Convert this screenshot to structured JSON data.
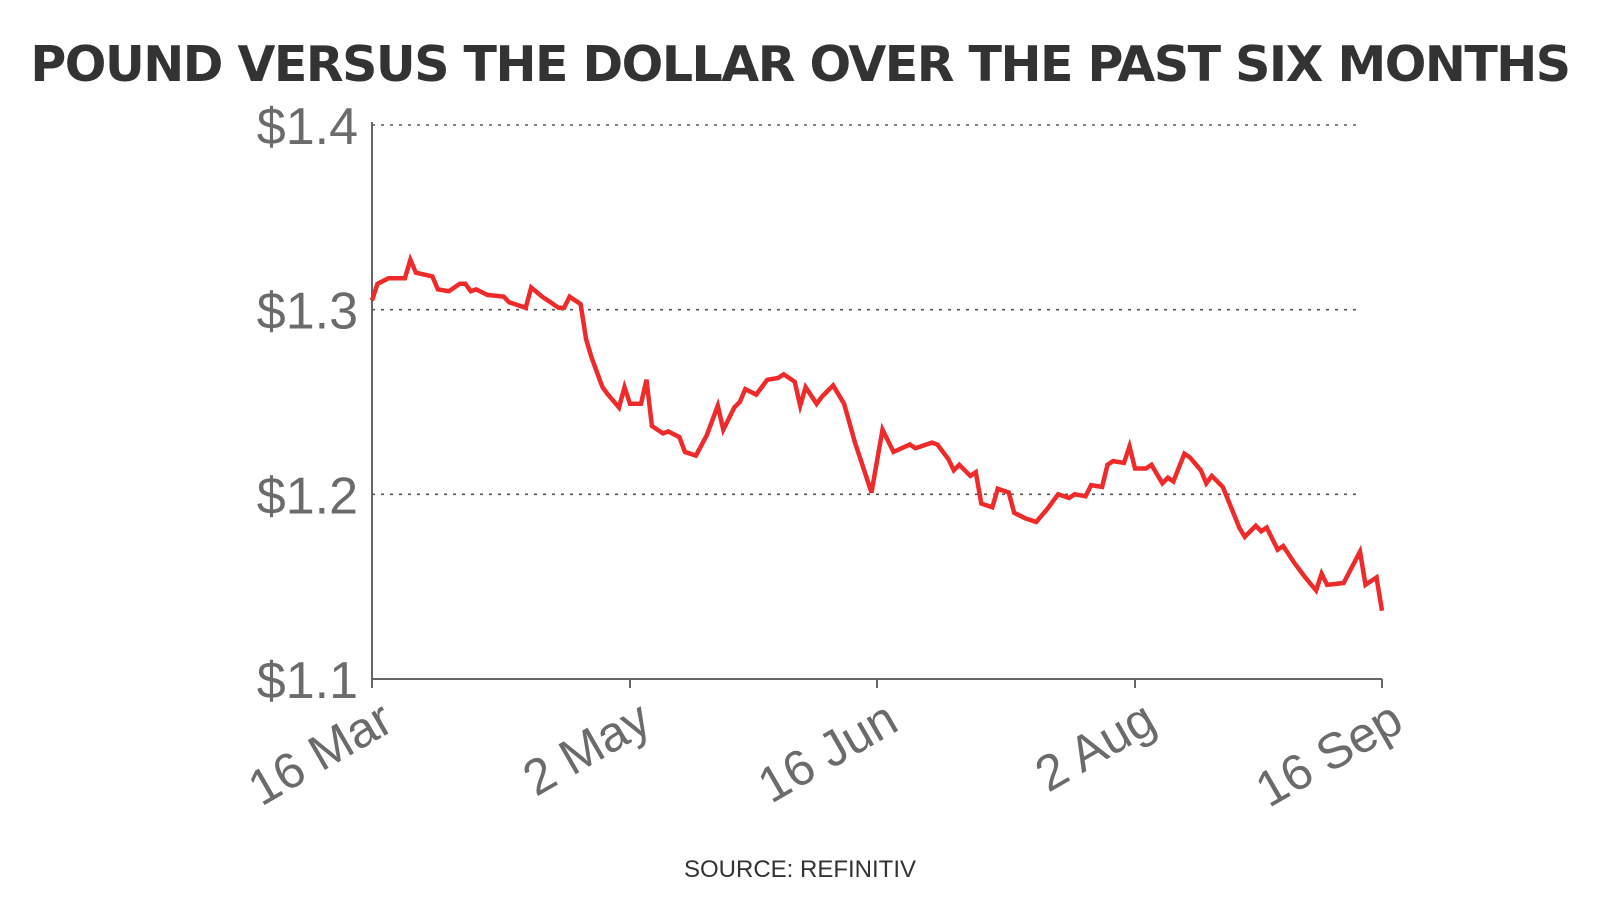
{
  "chart_data": {
    "type": "line",
    "title": "POUND VERSUS THE DOLLAR OVER THE PAST SIX MONTHS",
    "source": "SOURCE: REFINITIV",
    "xlabel": "",
    "ylabel": "",
    "ylim": [
      1.1,
      1.4
    ],
    "xlim": [
      "2022-03-16",
      "2022-09-16"
    ],
    "grid": "horizontal dotted",
    "line_color": "#ee2a2a",
    "y_ticks": [
      {
        "value": 1.1,
        "label": "$1.1"
      },
      {
        "value": 1.2,
        "label": "$1.2"
      },
      {
        "value": 1.3,
        "label": "$1.3"
      },
      {
        "value": 1.4,
        "label": "$1.4"
      }
    ],
    "x_ticks": [
      {
        "date": "2022-03-16",
        "label": "16 Mar"
      },
      {
        "date": "2022-05-02",
        "label": "2 May"
      },
      {
        "date": "2022-06-16",
        "label": "16 Jun"
      },
      {
        "date": "2022-08-02",
        "label": "2 Aug"
      },
      {
        "date": "2022-09-16",
        "label": "16 Sep"
      }
    ],
    "series": [
      {
        "points": [
          [
            "2022-03-16",
            1.305
          ],
          [
            "2022-03-17",
            1.314
          ],
          [
            "2022-03-19",
            1.317
          ],
          [
            "2022-03-22",
            1.317
          ],
          [
            "2022-03-23",
            1.327
          ],
          [
            "2022-03-24",
            1.32
          ],
          [
            "2022-03-27",
            1.318
          ],
          [
            "2022-03-28",
            1.311
          ],
          [
            "2022-03-30",
            1.31
          ],
          [
            "2022-04-01",
            1.314
          ],
          [
            "2022-04-02",
            1.314
          ],
          [
            "2022-04-03",
            1.31
          ],
          [
            "2022-04-04",
            1.311
          ],
          [
            "2022-04-06",
            1.308
          ],
          [
            "2022-04-09",
            1.307
          ],
          [
            "2022-04-10",
            1.304
          ],
          [
            "2022-04-13",
            1.301
          ],
          [
            "2022-04-14",
            1.312
          ],
          [
            "2022-04-16",
            1.307
          ],
          [
            "2022-04-17",
            1.305
          ],
          [
            "2022-04-19",
            1.301
          ],
          [
            "2022-04-20",
            1.301
          ],
          [
            "2022-04-21",
            1.307
          ],
          [
            "2022-04-23",
            1.303
          ],
          [
            "2022-04-24",
            1.284
          ],
          [
            "2022-04-25",
            1.274
          ],
          [
            "2022-04-27",
            1.258
          ],
          [
            "2022-04-28",
            1.254
          ],
          [
            "2022-04-30",
            1.247
          ],
          [
            "2022-05-01",
            1.258
          ],
          [
            "2022-05-02",
            1.249
          ],
          [
            "2022-05-04",
            1.249
          ],
          [
            "2022-05-05",
            1.262
          ],
          [
            "2022-05-06",
            1.237
          ],
          [
            "2022-05-08",
            1.233
          ],
          [
            "2022-05-09",
            1.234
          ],
          [
            "2022-05-11",
            1.231
          ],
          [
            "2022-05-12",
            1.223
          ],
          [
            "2022-05-14",
            1.221
          ],
          [
            "2022-05-16",
            1.232
          ],
          [
            "2022-05-18",
            1.248
          ],
          [
            "2022-05-19",
            1.235
          ],
          [
            "2022-05-21",
            1.247
          ],
          [
            "2022-05-22",
            1.25
          ],
          [
            "2022-05-23",
            1.257
          ],
          [
            "2022-05-25",
            1.254
          ],
          [
            "2022-05-27",
            1.262
          ],
          [
            "2022-05-29",
            1.263
          ],
          [
            "2022-05-30",
            1.265
          ],
          [
            "2022-06-01",
            1.261
          ],
          [
            "2022-06-02",
            1.248
          ],
          [
            "2022-06-03",
            1.258
          ],
          [
            "2022-06-05",
            1.249
          ],
          [
            "2022-06-06",
            1.253
          ],
          [
            "2022-06-08",
            1.259
          ],
          [
            "2022-06-10",
            1.249
          ],
          [
            "2022-06-12",
            1.228
          ],
          [
            "2022-06-15",
            1.201
          ],
          [
            "2022-06-17",
            1.235
          ],
          [
            "2022-06-19",
            1.223
          ],
          [
            "2022-06-22",
            1.227
          ],
          [
            "2022-06-23",
            1.225
          ],
          [
            "2022-06-26",
            1.228
          ],
          [
            "2022-06-27",
            1.227
          ],
          [
            "2022-06-29",
            1.219
          ],
          [
            "2022-06-30",
            1.213
          ],
          [
            "2022-07-01",
            1.216
          ],
          [
            "2022-07-03",
            1.21
          ],
          [
            "2022-07-04",
            1.212
          ],
          [
            "2022-07-05",
            1.195
          ],
          [
            "2022-07-07",
            1.193
          ],
          [
            "2022-07-08",
            1.203
          ],
          [
            "2022-07-10",
            1.201
          ],
          [
            "2022-07-11",
            1.19
          ],
          [
            "2022-07-13",
            1.187
          ],
          [
            "2022-07-15",
            1.185
          ],
          [
            "2022-07-17",
            1.192
          ],
          [
            "2022-07-19",
            1.2
          ],
          [
            "2022-07-21",
            1.198
          ],
          [
            "2022-07-22",
            1.2
          ],
          [
            "2022-07-24",
            1.199
          ],
          [
            "2022-07-25",
            1.205
          ],
          [
            "2022-07-27",
            1.204
          ],
          [
            "2022-07-28",
            1.216
          ],
          [
            "2022-07-29",
            1.218
          ],
          [
            "2022-07-31",
            1.217
          ],
          [
            "2022-08-01",
            1.226
          ],
          [
            "2022-08-02",
            1.214
          ],
          [
            "2022-08-04",
            1.214
          ],
          [
            "2022-08-05",
            1.216
          ],
          [
            "2022-08-07",
            1.206
          ],
          [
            "2022-08-08",
            1.209
          ],
          [
            "2022-08-09",
            1.207
          ],
          [
            "2022-08-11",
            1.222
          ],
          [
            "2022-08-12",
            1.22
          ],
          [
            "2022-08-14",
            1.213
          ],
          [
            "2022-08-15",
            1.206
          ],
          [
            "2022-08-16",
            1.21
          ],
          [
            "2022-08-18",
            1.204
          ],
          [
            "2022-08-21",
            1.182
          ],
          [
            "2022-08-22",
            1.177
          ],
          [
            "2022-08-24",
            1.183
          ],
          [
            "2022-08-25",
            1.18
          ],
          [
            "2022-08-26",
            1.182
          ],
          [
            "2022-08-28",
            1.17
          ],
          [
            "2022-08-29",
            1.172
          ],
          [
            "2022-08-31",
            1.163
          ],
          [
            "2022-09-01",
            1.159
          ],
          [
            "2022-09-02",
            1.155
          ],
          [
            "2022-09-04",
            1.148
          ],
          [
            "2022-09-05",
            1.157
          ],
          [
            "2022-09-06",
            1.151
          ],
          [
            "2022-09-09",
            1.152
          ],
          [
            "2022-09-12",
            1.169
          ],
          [
            "2022-09-13",
            1.151
          ],
          [
            "2022-09-15",
            1.155
          ],
          [
            "2022-09-16",
            1.137
          ]
        ]
      }
    ]
  }
}
